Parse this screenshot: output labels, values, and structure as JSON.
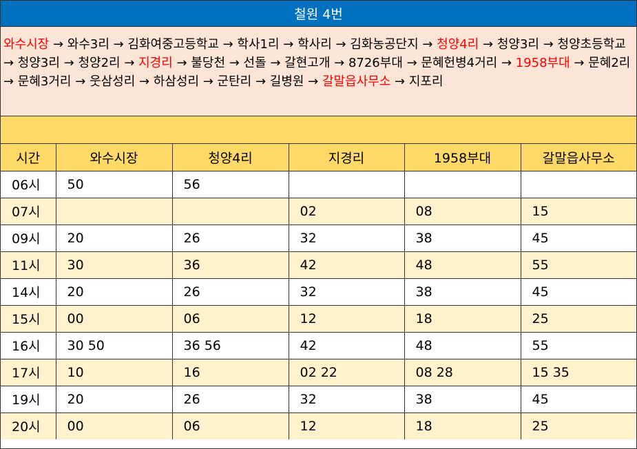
{
  "title": "철원 4번",
  "route": [
    {
      "text": "와수시장",
      "highlight": true
    },
    {
      "text": " → 와수3리 → 김화여중고등학교 → 학사1리 → 학사리 → 김화농공단지 → ",
      "highlight": false
    },
    {
      "text": "청양4리",
      "highlight": true
    },
    {
      "text": " → 청양3리 → 청양초등학교 → 청양3리 → 청양2리 → ",
      "highlight": false
    },
    {
      "text": "지경리",
      "highlight": true
    },
    {
      "text": " → 불당천 → 선돌 → 갈현고개 → 8726부대 → 문혜헌병4거리 → ",
      "highlight": false
    },
    {
      "text": "1958부대",
      "highlight": true
    },
    {
      "text": " → 문혜2리 → 문혜3거리 → 웃삼성리 → 하삼성리 → 군탄리 → 길병원 → ",
      "highlight": false
    },
    {
      "text": "갈말읍사무소",
      "highlight": true
    },
    {
      "text": " → 지포리",
      "highlight": false
    }
  ],
  "table": {
    "headers": [
      "시간",
      "와수시장",
      "청양4리",
      "지경리",
      "1958부대",
      "갈말읍사무소"
    ],
    "rows": [
      [
        "06시",
        "50",
        "56",
        "",
        "",
        ""
      ],
      [
        "07시",
        "",
        "",
        "02",
        "08",
        "15"
      ],
      [
        "09시",
        "20",
        "26",
        "32",
        "38",
        "45"
      ],
      [
        "11시",
        "30",
        "36",
        "42",
        "48",
        "55"
      ],
      [
        "14시",
        "20",
        "26",
        "32",
        "38",
        "45"
      ],
      [
        "15시",
        "00",
        "06",
        "12",
        "18",
        "25"
      ],
      [
        "16시",
        "30 50",
        "36 56",
        "42",
        "48",
        "55"
      ],
      [
        "17시",
        "10",
        "16",
        "02 22",
        "08 28",
        "15 35"
      ],
      [
        "19시",
        "20",
        "26",
        "32",
        "38",
        "45"
      ],
      [
        "20시",
        "00",
        "06",
        "12",
        "18",
        "25"
      ]
    ]
  },
  "colors": {
    "title_bg": "#0070c0",
    "route_bg": "#fce4d6",
    "highlight": "#ff0000",
    "header_bg": "#ffd966",
    "alt_row_bg": "#fff2cc"
  }
}
